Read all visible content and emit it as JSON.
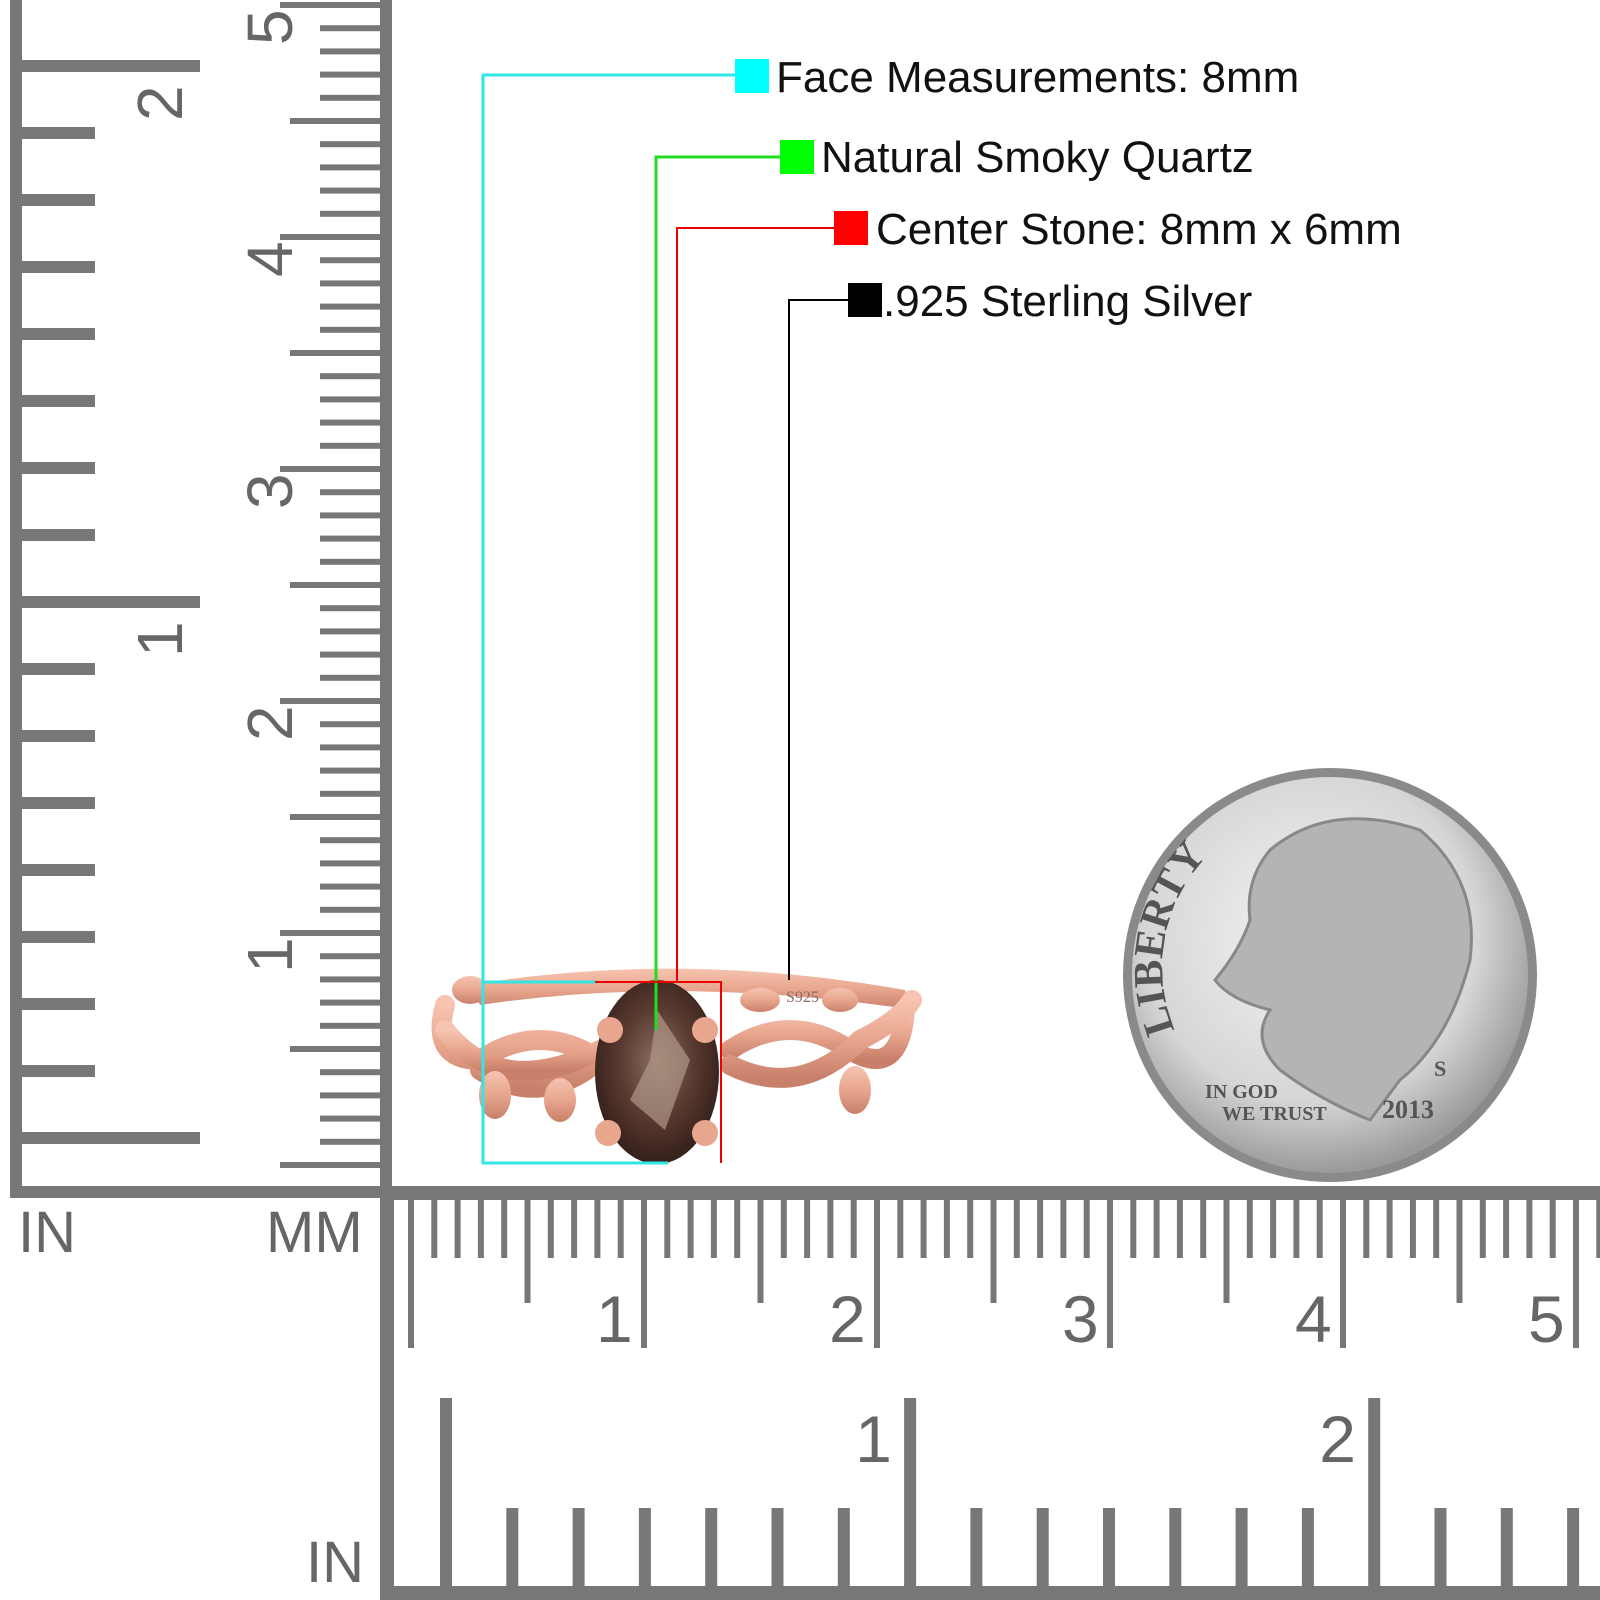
{
  "legend": [
    {
      "label": "Face Measurements: 8mm",
      "color": "#00ffff",
      "line_color": "#33e6e6"
    },
    {
      "label": "Natural Smoky Quartz",
      "color": "#00ff00",
      "line_color": "#22dd22"
    },
    {
      "label": "Center Stone: 8mm x 6mm",
      "color": "#ff0000",
      "line_color": "#ee0000"
    },
    {
      "label": ".925 Sterling Silver",
      "color": "#000000",
      "line_color": "#000000"
    }
  ],
  "rulers": {
    "vertical": {
      "inch_unit": "IN",
      "mm_unit": "MM",
      "inch_labels": [
        "1",
        "2"
      ],
      "cm_labels": [
        "1",
        "2",
        "3",
        "4",
        "5"
      ]
    },
    "horizontal": {
      "inch_unit": "IN",
      "cm_labels": [
        "1",
        "2",
        "3",
        "4",
        "5"
      ],
      "inch_labels": [
        "1",
        "2"
      ]
    },
    "color": "#777777"
  },
  "ring": {
    "stamp": "S925",
    "metal_color": "#e8a68e",
    "stone_color": "#4a3028"
  },
  "coin": {
    "top_text": "LIBERTY",
    "motto_line1": "IN GOD",
    "motto_line2": "WE TRUST",
    "year": "2013",
    "mint_mark": "S"
  }
}
